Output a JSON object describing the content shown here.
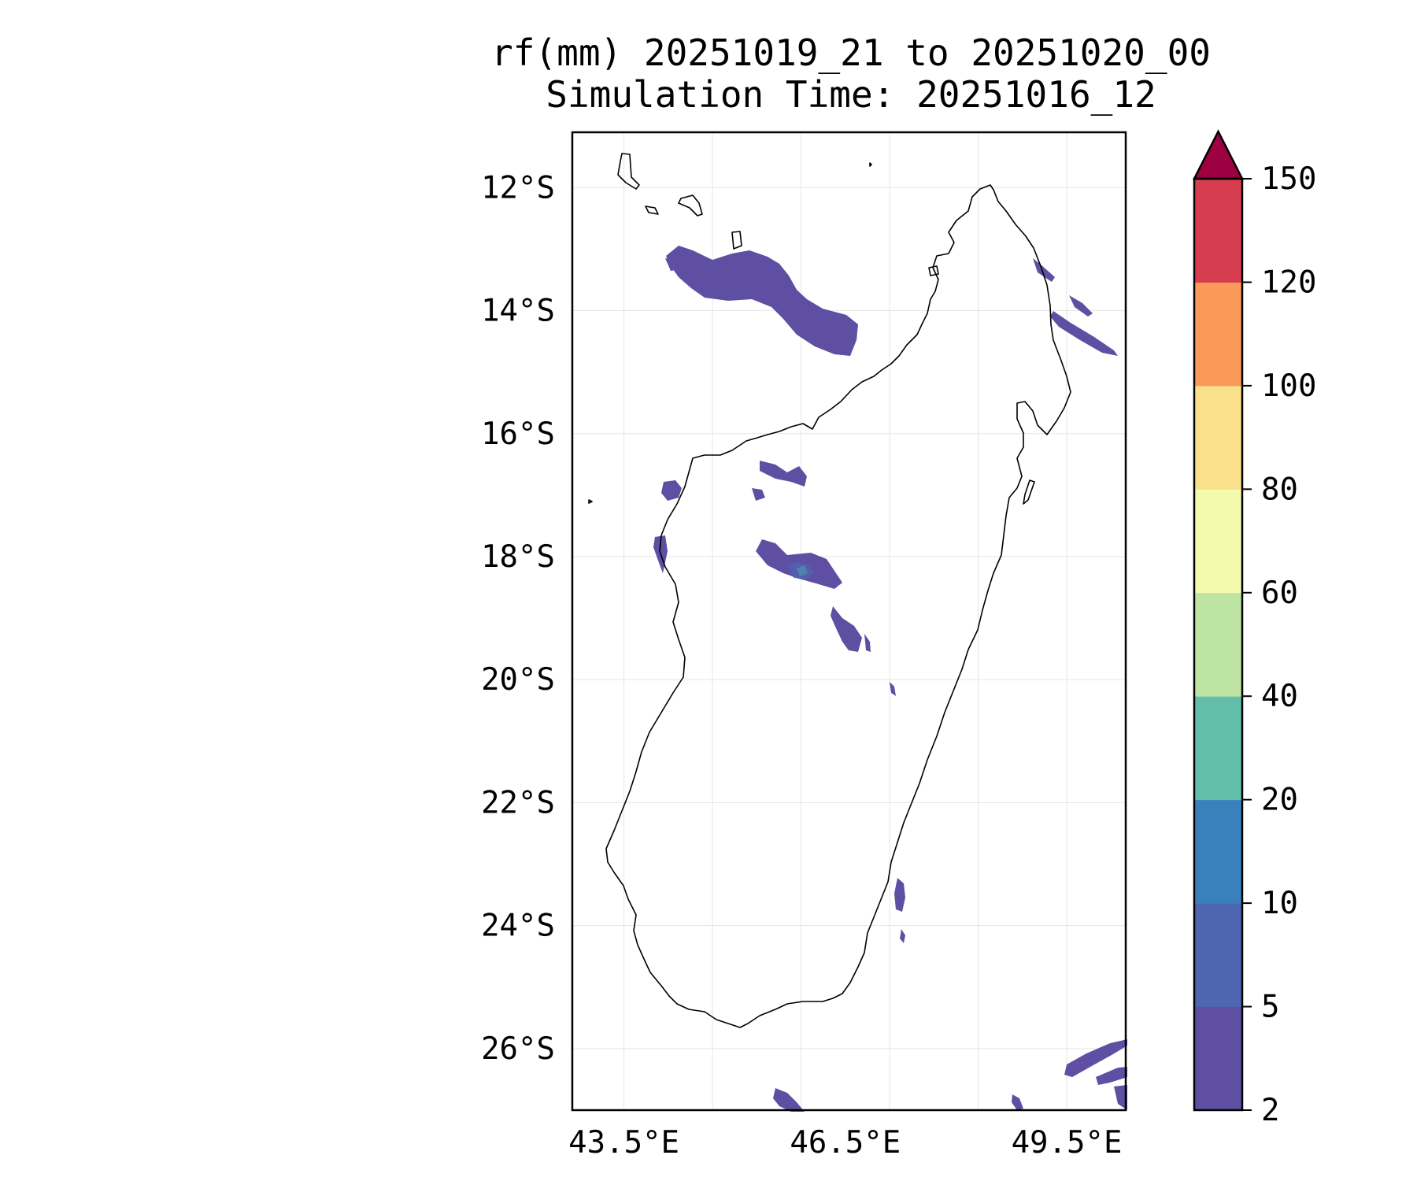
{
  "title": {
    "line1": "rf(mm) 20251019_21 to 20251020_00",
    "line2": "Simulation Time: 20251016_12"
  },
  "map": {
    "region": "Madagascar",
    "lon_range": [
      42.8,
      50.3
    ],
    "lat_range": [
      -27.0,
      -11.1
    ],
    "x_ticks": [
      "43.5°E",
      "46.5°E",
      "49.5°E"
    ],
    "x_tick_values": [
      43.5,
      46.5,
      49.5
    ],
    "y_ticks": [
      "12°S",
      "14°S",
      "16°S",
      "18°S",
      "20°S",
      "22°S",
      "24°S",
      "26°S"
    ],
    "y_tick_values": [
      -12,
      -14,
      -16,
      -18,
      -20,
      -22,
      -24,
      -26
    ],
    "grid": true,
    "coastline_color": "#000000",
    "rain_color": "#5e4fa2"
  },
  "colorbar": {
    "labels": [
      "2",
      "5",
      "10",
      "20",
      "40",
      "60",
      "80",
      "100",
      "120",
      "150"
    ],
    "colors": [
      "#5e4fa2",
      "#4e65b0",
      "#3a80bc",
      "#63bfa9",
      "#bde4a3",
      "#f3f9ad",
      "#fbe08c",
      "#f9995a",
      "#d63e4f"
    ],
    "extend_color": "#9e0142",
    "extend": "max"
  }
}
